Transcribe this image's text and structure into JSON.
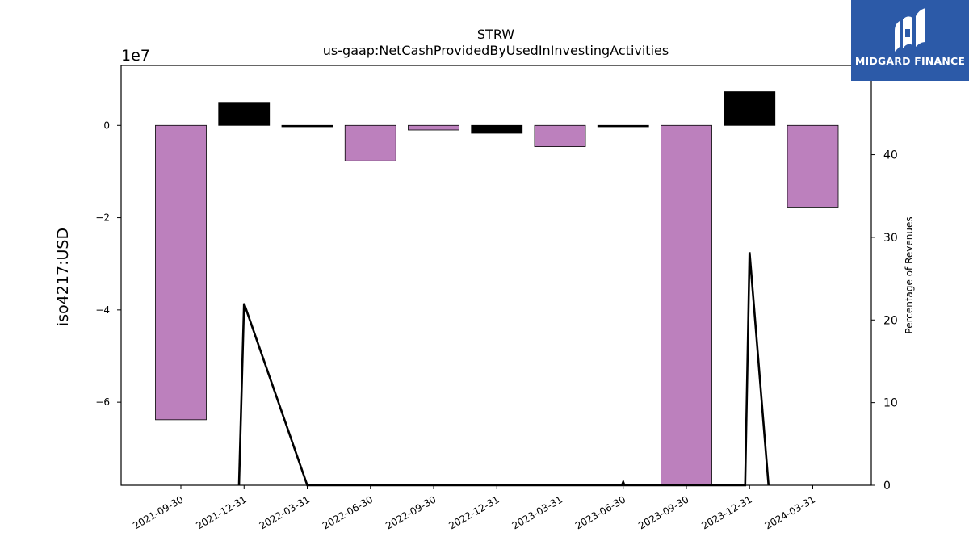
{
  "chart_data": {
    "type": "bar",
    "title": "STRW",
    "subtitle": "us-gaap:NetCashProvidedByUsedInInvestingActivities",
    "ylabel": "iso4217:USD",
    "y_offset_label": "1e7",
    "y2label": "Percentage of Revenues",
    "categories": [
      "2021-09-30",
      "2021-12-31",
      "2022-03-31",
      "2022-06-30",
      "2022-09-30",
      "2022-12-31",
      "2023-03-31",
      "2023-06-30",
      "2023-09-30",
      "2023-12-31",
      "2024-03-31"
    ],
    "values": [
      -63800000,
      5000000,
      -300000,
      -7700000,
      -1000000,
      -1700000,
      -4600000,
      -300000,
      -78000000,
      7300000,
      -17700000
    ],
    "bar_colors": [
      "#bc80bd",
      "#000000",
      "#000000",
      "#bc80bd",
      "#bc80bd",
      "#000000",
      "#bc80bd",
      "#000000",
      "#bc80bd",
      "#000000",
      "#bc80bd"
    ],
    "ylim": [
      -78000000,
      13000000
    ],
    "yticks": [
      0,
      -20000000,
      -40000000,
      -60000000
    ],
    "ytick_labels": [
      "0",
      "−2",
      "−4",
      "−6"
    ],
    "y2lim": [
      0,
      50.8
    ],
    "y2ticks": [
      0,
      10,
      20,
      30,
      40
    ],
    "y2tick_labels": [
      "0",
      "10",
      "20",
      "30",
      "40"
    ],
    "line_series": {
      "name": "Percentage of Revenues",
      "points": [
        {
          "x": 0.92,
          "y": 0
        },
        {
          "x": 1.0,
          "y": 22
        },
        {
          "x": 2.0,
          "y": 0
        },
        {
          "x": 6.98,
          "y": 0
        },
        {
          "x": 7.0,
          "y": 0.4
        },
        {
          "x": 7.02,
          "y": 0
        },
        {
          "x": 8.93,
          "y": 0
        },
        {
          "x": 9.0,
          "y": 28.2
        },
        {
          "x": 9.3,
          "y": 0
        }
      ]
    }
  },
  "branding": {
    "logo_text": "MIDGARD FINANCE",
    "logo_bg": "#2c5aa8"
  }
}
